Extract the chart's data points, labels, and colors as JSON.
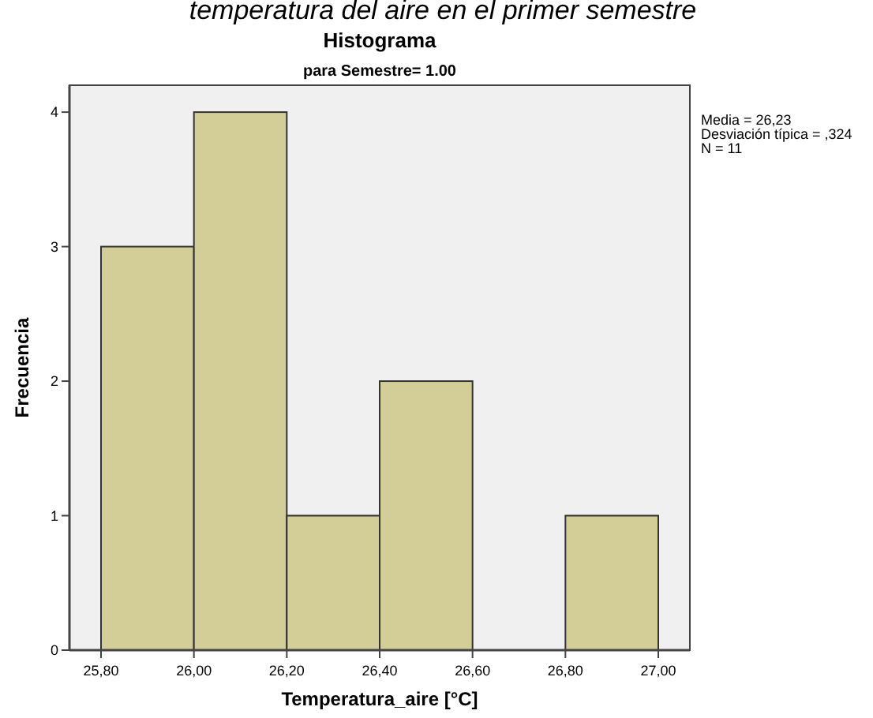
{
  "chart_data": {
    "type": "histogram",
    "title": "Histograma",
    "subtitle": "para Semestre= 1.00",
    "xlabel": "Temperatura_aire [°C]",
    "ylabel": "Frecuencia",
    "bins": [
      25.8,
      26.0,
      26.2,
      26.4,
      26.6,
      26.8,
      27.0
    ],
    "values": [
      3,
      4,
      1,
      2,
      0,
      1
    ],
    "color": "#d3cd98",
    "xlim": [
      25.732,
      27.068
    ],
    "ylim": [
      0,
      4.2
    ],
    "xticks": [
      {
        "value": 25.8,
        "label": "25,80"
      },
      {
        "value": 26.0,
        "label": "26,00"
      },
      {
        "value": 26.2,
        "label": "26,20"
      },
      {
        "value": 26.4,
        "label": "26,40"
      },
      {
        "value": 26.6,
        "label": "26,60"
      },
      {
        "value": 26.8,
        "label": "26,80"
      },
      {
        "value": 27.0,
        "label": "27,00"
      }
    ],
    "yticks": [
      0,
      1,
      2,
      3,
      4
    ],
    "grid": false,
    "annotations": [
      "temperatura del aire en el primer semestre",
      "Media = 26,23",
      "Desviación típica = ,324",
      "N = 11"
    ]
  }
}
